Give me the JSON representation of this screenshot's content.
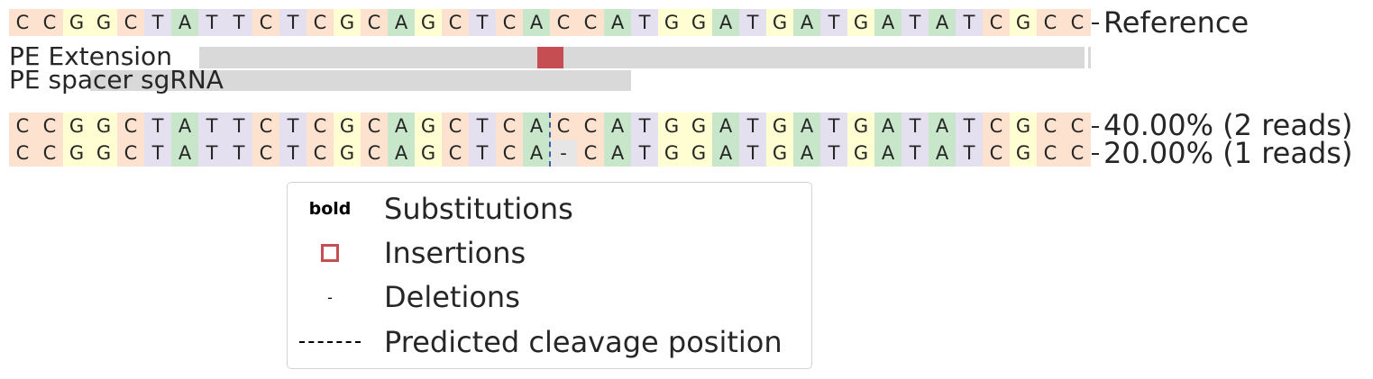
{
  "colors": {
    "A": "#c8e6c9",
    "C": "#fde2cf",
    "G": "#fefed2",
    "T": "#e4e0ef",
    "gap": "#e6e6e6",
    "insertion": "#c44e52",
    "track": "#d9d9d9",
    "cleavage": "#3a5fa8"
  },
  "reference": {
    "label": "Reference",
    "sequence": [
      "C",
      "C",
      "G",
      "G",
      "C",
      "T",
      "A",
      "T",
      "T",
      "C",
      "T",
      "C",
      "G",
      "C",
      "A",
      "G",
      "C",
      "T",
      "C",
      "A",
      "C",
      "C",
      "A",
      "T",
      "G",
      "G",
      "A",
      "T",
      "G",
      "A",
      "T",
      "G",
      "A",
      "T",
      "A",
      "T",
      "C",
      "G",
      "C",
      "C"
    ]
  },
  "tracks": [
    {
      "label": "PE Extension"
    },
    {
      "label": "PE spacer sgRNA"
    }
  ],
  "alleles": [
    {
      "label": "40.00% (2 reads)",
      "sequence": [
        "C",
        "C",
        "G",
        "G",
        "C",
        "T",
        "A",
        "T",
        "T",
        "C",
        "T",
        "C",
        "G",
        "C",
        "A",
        "G",
        "C",
        "T",
        "C",
        "A",
        "C",
        "C",
        "A",
        "T",
        "G",
        "G",
        "A",
        "T",
        "G",
        "A",
        "T",
        "G",
        "A",
        "T",
        "A",
        "T",
        "C",
        "G",
        "C",
        "C"
      ]
    },
    {
      "label": "20.00% (1 reads)",
      "sequence": [
        "C",
        "C",
        "G",
        "G",
        "C",
        "T",
        "A",
        "T",
        "T",
        "C",
        "T",
        "C",
        "G",
        "C",
        "A",
        "G",
        "C",
        "T",
        "C",
        "A",
        "-",
        "C",
        "A",
        "T",
        "G",
        "G",
        "A",
        "T",
        "G",
        "A",
        "T",
        "G",
        "A",
        "T",
        "A",
        "T",
        "C",
        "G",
        "C",
        "C"
      ]
    }
  ],
  "legend": [
    {
      "symbol": "bold",
      "label": "Substitutions"
    },
    {
      "symbol": "",
      "label": "Insertions"
    },
    {
      "symbol": "-",
      "label": "Deletions"
    },
    {
      "symbol": "",
      "label": "Predicted cleavage position"
    }
  ]
}
